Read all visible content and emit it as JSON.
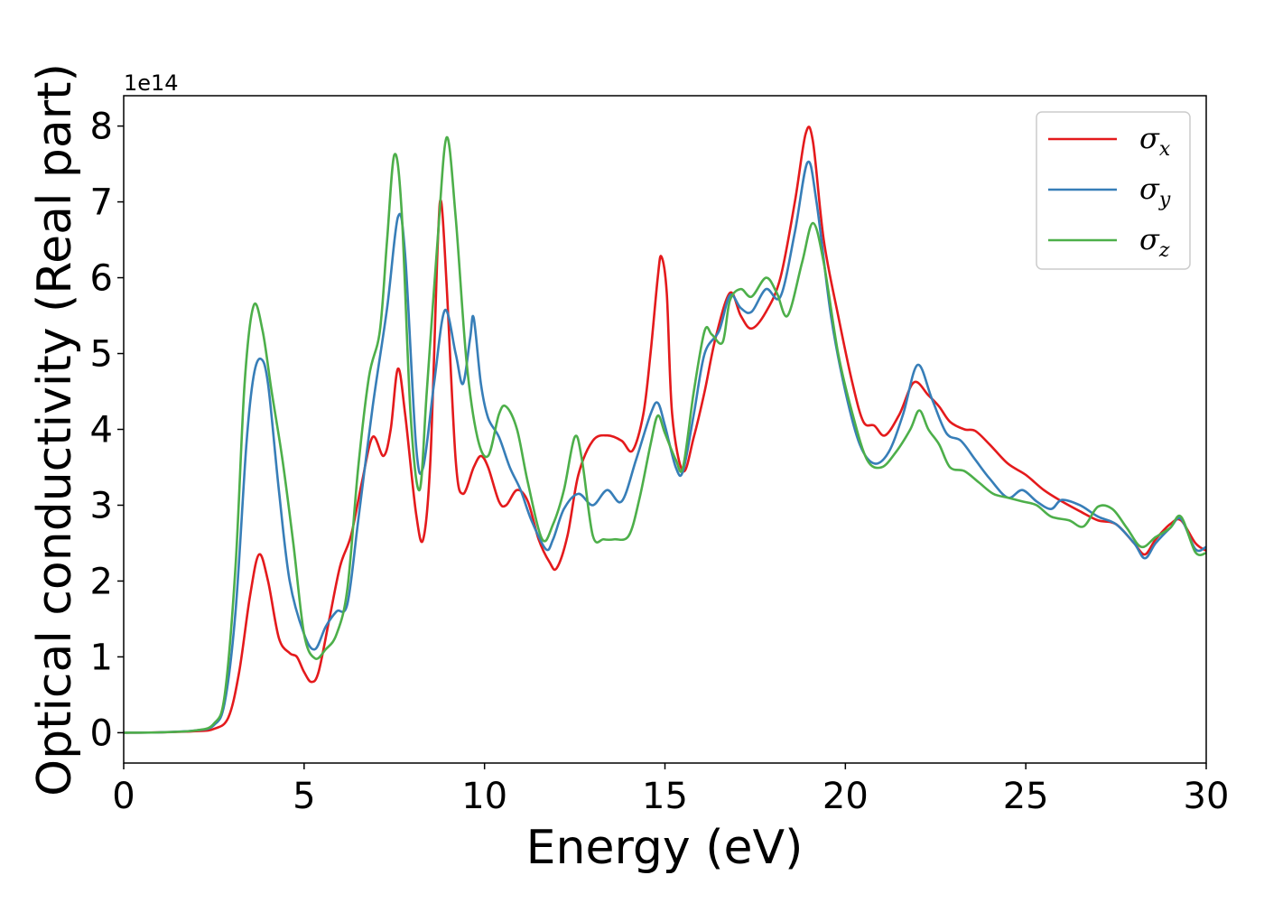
{
  "chart_data": {
    "type": "line",
    "title": "",
    "xlabel": "Energy (eV)",
    "ylabel": "Optical conductivity (Real part)",
    "y_offset_label": "1e14",
    "xlim": [
      0,
      30
    ],
    "ylim": [
      -0.4,
      8.4
    ],
    "x_ticks": [
      0,
      5,
      10,
      15,
      20,
      25,
      30
    ],
    "y_ticks": [
      0,
      1,
      2,
      3,
      4,
      5,
      6,
      7,
      8
    ],
    "grid": false,
    "legend_position": "top-right",
    "series": [
      {
        "name": "σx",
        "symbol": "σ",
        "subscript": "x",
        "color": "#e41a1c",
        "points": [
          [
            0,
            0
          ],
          [
            1,
            0.005
          ],
          [
            2,
            0.02
          ],
          [
            2.5,
            0.05
          ],
          [
            2.9,
            0.2
          ],
          [
            3.2,
            0.8
          ],
          [
            3.5,
            1.8
          ],
          [
            3.75,
            2.35
          ],
          [
            4.0,
            2.0
          ],
          [
            4.3,
            1.25
          ],
          [
            4.6,
            1.05
          ],
          [
            4.8,
            1.0
          ],
          [
            5.0,
            0.8
          ],
          [
            5.2,
            0.67
          ],
          [
            5.4,
            0.8
          ],
          [
            5.7,
            1.5
          ],
          [
            6.0,
            2.2
          ],
          [
            6.3,
            2.6
          ],
          [
            6.6,
            3.3
          ],
          [
            6.9,
            3.9
          ],
          [
            7.2,
            3.65
          ],
          [
            7.4,
            4.0
          ],
          [
            7.6,
            4.8
          ],
          [
            7.8,
            4.2
          ],
          [
            8.1,
            2.9
          ],
          [
            8.3,
            2.55
          ],
          [
            8.5,
            3.6
          ],
          [
            8.7,
            6.4
          ],
          [
            8.8,
            7.0
          ],
          [
            8.95,
            5.9
          ],
          [
            9.2,
            3.6
          ],
          [
            9.4,
            3.15
          ],
          [
            9.7,
            3.5
          ],
          [
            9.9,
            3.65
          ],
          [
            10.1,
            3.5
          ],
          [
            10.4,
            3.05
          ],
          [
            10.6,
            3.0
          ],
          [
            10.9,
            3.2
          ],
          [
            11.2,
            3.05
          ],
          [
            11.5,
            2.55
          ],
          [
            11.8,
            2.25
          ],
          [
            12.0,
            2.17
          ],
          [
            12.3,
            2.6
          ],
          [
            12.6,
            3.4
          ],
          [
            13.0,
            3.85
          ],
          [
            13.4,
            3.92
          ],
          [
            13.8,
            3.85
          ],
          [
            14.1,
            3.72
          ],
          [
            14.4,
            4.2
          ],
          [
            14.6,
            5.0
          ],
          [
            14.8,
            6.0
          ],
          [
            14.9,
            6.28
          ],
          [
            15.05,
            5.8
          ],
          [
            15.2,
            4.2
          ],
          [
            15.5,
            3.45
          ],
          [
            15.8,
            3.9
          ],
          [
            16.1,
            4.5
          ],
          [
            16.4,
            5.2
          ],
          [
            16.8,
            5.8
          ],
          [
            17.1,
            5.5
          ],
          [
            17.4,
            5.33
          ],
          [
            17.8,
            5.55
          ],
          [
            18.2,
            6.0
          ],
          [
            18.6,
            7.0
          ],
          [
            18.9,
            7.9
          ],
          [
            19.1,
            7.8
          ],
          [
            19.4,
            6.5
          ],
          [
            19.8,
            5.5
          ],
          [
            20.2,
            4.6
          ],
          [
            20.5,
            4.1
          ],
          [
            20.8,
            4.05
          ],
          [
            21.1,
            3.92
          ],
          [
            21.5,
            4.2
          ],
          [
            21.9,
            4.62
          ],
          [
            22.3,
            4.45
          ],
          [
            22.6,
            4.3
          ],
          [
            22.9,
            4.1
          ],
          [
            23.3,
            4.0
          ],
          [
            23.6,
            3.98
          ],
          [
            24.0,
            3.8
          ],
          [
            24.5,
            3.55
          ],
          [
            25.0,
            3.4
          ],
          [
            25.5,
            3.2
          ],
          [
            26.0,
            3.05
          ],
          [
            26.5,
            2.92
          ],
          [
            27.0,
            2.8
          ],
          [
            27.5,
            2.75
          ],
          [
            28.0,
            2.5
          ],
          [
            28.3,
            2.35
          ],
          [
            28.6,
            2.55
          ],
          [
            29.0,
            2.75
          ],
          [
            29.3,
            2.8
          ],
          [
            29.7,
            2.5
          ],
          [
            30.0,
            2.4
          ]
        ]
      },
      {
        "name": "σy",
        "symbol": "σ",
        "subscript": "y",
        "color": "#377eb8",
        "points": [
          [
            0,
            0
          ],
          [
            1,
            0.005
          ],
          [
            2,
            0.03
          ],
          [
            2.5,
            0.1
          ],
          [
            2.8,
            0.4
          ],
          [
            3.1,
            1.6
          ],
          [
            3.4,
            3.8
          ],
          [
            3.6,
            4.7
          ],
          [
            3.8,
            4.93
          ],
          [
            4.0,
            4.6
          ],
          [
            4.3,
            3.2
          ],
          [
            4.6,
            2.0
          ],
          [
            5.0,
            1.3
          ],
          [
            5.3,
            1.1
          ],
          [
            5.6,
            1.4
          ],
          [
            5.9,
            1.6
          ],
          [
            6.2,
            1.7
          ],
          [
            6.5,
            2.8
          ],
          [
            6.9,
            4.3
          ],
          [
            7.3,
            5.6
          ],
          [
            7.6,
            6.8
          ],
          [
            7.8,
            6.3
          ],
          [
            8.1,
            3.8
          ],
          [
            8.3,
            3.5
          ],
          [
            8.6,
            4.6
          ],
          [
            8.9,
            5.57
          ],
          [
            9.2,
            5.0
          ],
          [
            9.4,
            4.6
          ],
          [
            9.6,
            5.2
          ],
          [
            9.7,
            5.47
          ],
          [
            9.9,
            4.6
          ],
          [
            10.1,
            4.15
          ],
          [
            10.4,
            3.9
          ],
          [
            10.7,
            3.5
          ],
          [
            11.0,
            3.2
          ],
          [
            11.3,
            2.8
          ],
          [
            11.7,
            2.42
          ],
          [
            11.9,
            2.55
          ],
          [
            12.2,
            2.95
          ],
          [
            12.6,
            3.15
          ],
          [
            13.0,
            3.0
          ],
          [
            13.4,
            3.2
          ],
          [
            13.8,
            3.05
          ],
          [
            14.2,
            3.6
          ],
          [
            14.6,
            4.2
          ],
          [
            14.8,
            4.35
          ],
          [
            15.0,
            4.05
          ],
          [
            15.3,
            3.5
          ],
          [
            15.5,
            3.45
          ],
          [
            15.8,
            4.2
          ],
          [
            16.1,
            5.0
          ],
          [
            16.5,
            5.3
          ],
          [
            16.8,
            5.77
          ],
          [
            17.1,
            5.6
          ],
          [
            17.4,
            5.55
          ],
          [
            17.8,
            5.85
          ],
          [
            18.2,
            5.75
          ],
          [
            18.6,
            6.6
          ],
          [
            18.95,
            7.52
          ],
          [
            19.2,
            7.0
          ],
          [
            19.6,
            5.5
          ],
          [
            20.0,
            4.5
          ],
          [
            20.4,
            3.8
          ],
          [
            20.8,
            3.55
          ],
          [
            21.2,
            3.7
          ],
          [
            21.6,
            4.2
          ],
          [
            22.0,
            4.85
          ],
          [
            22.4,
            4.4
          ],
          [
            22.8,
            3.95
          ],
          [
            23.2,
            3.85
          ],
          [
            23.6,
            3.6
          ],
          [
            24.0,
            3.35
          ],
          [
            24.5,
            3.1
          ],
          [
            24.9,
            3.2
          ],
          [
            25.3,
            3.05
          ],
          [
            25.7,
            2.95
          ],
          [
            26.0,
            3.07
          ],
          [
            26.5,
            3.0
          ],
          [
            27.0,
            2.85
          ],
          [
            27.5,
            2.75
          ],
          [
            28.0,
            2.5
          ],
          [
            28.3,
            2.3
          ],
          [
            28.6,
            2.5
          ],
          [
            29.0,
            2.7
          ],
          [
            29.3,
            2.82
          ],
          [
            29.7,
            2.42
          ],
          [
            30.0,
            2.45
          ]
        ]
      },
      {
        "name": "σz",
        "symbol": "σ",
        "subscript": "z",
        "color": "#4daf4a",
        "points": [
          [
            0,
            0
          ],
          [
            1,
            0.005
          ],
          [
            2,
            0.03
          ],
          [
            2.5,
            0.12
          ],
          [
            2.8,
            0.5
          ],
          [
            3.1,
            2.2
          ],
          [
            3.35,
            4.6
          ],
          [
            3.6,
            5.63
          ],
          [
            3.85,
            5.3
          ],
          [
            4.1,
            4.5
          ],
          [
            4.4,
            3.6
          ],
          [
            4.7,
            2.5
          ],
          [
            5.0,
            1.3
          ],
          [
            5.3,
            0.98
          ],
          [
            5.6,
            1.1
          ],
          [
            5.9,
            1.3
          ],
          [
            6.2,
            1.9
          ],
          [
            6.5,
            3.5
          ],
          [
            6.8,
            4.7
          ],
          [
            7.1,
            5.3
          ],
          [
            7.3,
            6.5
          ],
          [
            7.5,
            7.62
          ],
          [
            7.7,
            6.9
          ],
          [
            7.95,
            4.2
          ],
          [
            8.2,
            3.2
          ],
          [
            8.4,
            4.5
          ],
          [
            8.7,
            6.5
          ],
          [
            8.95,
            7.85
          ],
          [
            9.2,
            6.8
          ],
          [
            9.5,
            4.9
          ],
          [
            9.8,
            3.9
          ],
          [
            10.1,
            3.65
          ],
          [
            10.4,
            4.2
          ],
          [
            10.6,
            4.3
          ],
          [
            10.9,
            4.0
          ],
          [
            11.2,
            3.3
          ],
          [
            11.6,
            2.55
          ],
          [
            11.9,
            2.75
          ],
          [
            12.2,
            3.2
          ],
          [
            12.5,
            3.9
          ],
          [
            12.7,
            3.6
          ],
          [
            13.0,
            2.6
          ],
          [
            13.3,
            2.55
          ],
          [
            13.6,
            2.55
          ],
          [
            14.0,
            2.6
          ],
          [
            14.3,
            3.1
          ],
          [
            14.6,
            3.8
          ],
          [
            14.8,
            4.18
          ],
          [
            15.0,
            3.95
          ],
          [
            15.3,
            3.6
          ],
          [
            15.5,
            3.5
          ],
          [
            15.8,
            4.5
          ],
          [
            16.1,
            5.3
          ],
          [
            16.3,
            5.25
          ],
          [
            16.6,
            5.15
          ],
          [
            16.8,
            5.7
          ],
          [
            17.1,
            5.85
          ],
          [
            17.4,
            5.75
          ],
          [
            17.8,
            6.0
          ],
          [
            18.1,
            5.8
          ],
          [
            18.4,
            5.5
          ],
          [
            18.8,
            6.2
          ],
          [
            19.1,
            6.72
          ],
          [
            19.4,
            6.2
          ],
          [
            19.8,
            5.0
          ],
          [
            20.2,
            4.2
          ],
          [
            20.6,
            3.6
          ],
          [
            21.0,
            3.5
          ],
          [
            21.4,
            3.7
          ],
          [
            21.8,
            4.0
          ],
          [
            22.05,
            4.25
          ],
          [
            22.3,
            4.0
          ],
          [
            22.6,
            3.8
          ],
          [
            22.9,
            3.5
          ],
          [
            23.3,
            3.45
          ],
          [
            23.7,
            3.3
          ],
          [
            24.1,
            3.15
          ],
          [
            24.5,
            3.1
          ],
          [
            24.9,
            3.05
          ],
          [
            25.3,
            3.0
          ],
          [
            25.7,
            2.85
          ],
          [
            26.2,
            2.8
          ],
          [
            26.6,
            2.72
          ],
          [
            27.0,
            2.98
          ],
          [
            27.4,
            2.95
          ],
          [
            27.8,
            2.7
          ],
          [
            28.2,
            2.45
          ],
          [
            28.6,
            2.58
          ],
          [
            29.0,
            2.7
          ],
          [
            29.3,
            2.85
          ],
          [
            29.7,
            2.38
          ],
          [
            30.0,
            2.37
          ]
        ]
      }
    ]
  }
}
